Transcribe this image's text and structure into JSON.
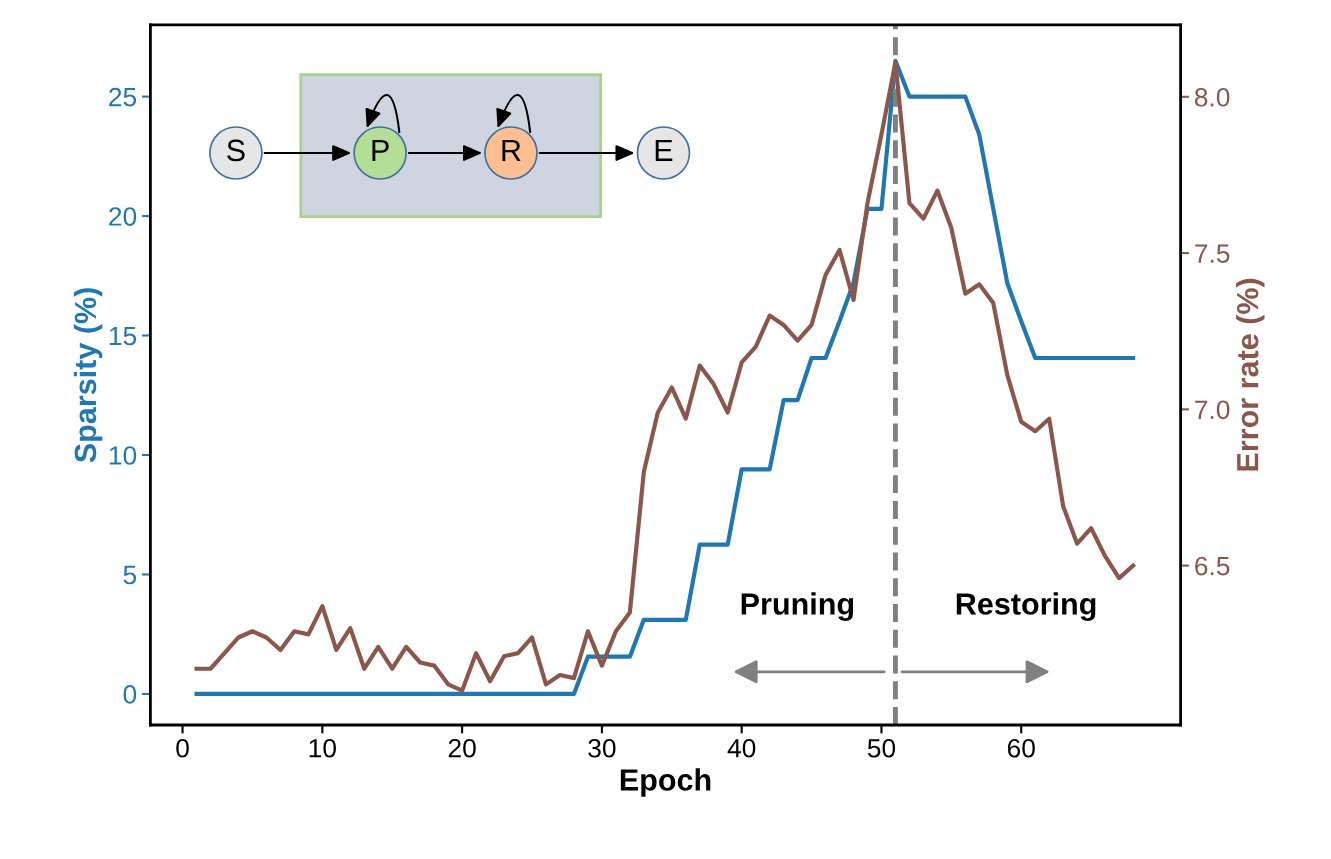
{
  "chart_data": {
    "type": "line",
    "xlabel": "Epoch",
    "ylabel": "Sparsity (%)",
    "y2label": "Error rate (%)",
    "x": [
      1,
      2,
      3,
      4,
      5,
      6,
      7,
      8,
      9,
      10,
      11,
      12,
      13,
      14,
      15,
      16,
      17,
      18,
      19,
      20,
      21,
      22,
      23,
      24,
      25,
      26,
      27,
      28,
      29,
      30,
      31,
      32,
      33,
      34,
      35,
      36,
      37,
      38,
      39,
      40,
      41,
      42,
      43,
      44,
      45,
      46,
      47,
      48,
      49,
      50,
      51,
      52,
      53,
      54,
      55,
      56,
      57,
      58,
      59,
      60,
      61,
      62,
      63,
      64,
      65,
      66,
      67,
      68
    ],
    "series": [
      {
        "color": "#1f77b4",
        "values": [
          0,
          0,
          0,
          0,
          0,
          0,
          0,
          0,
          0,
          0,
          0,
          0,
          0,
          0,
          0,
          0,
          0,
          0,
          0,
          0,
          0,
          0,
          0,
          0,
          0,
          0,
          0,
          0,
          1.56,
          1.56,
          1.56,
          1.56,
          3.1,
          3.1,
          3.1,
          3.1,
          6.25,
          6.25,
          6.25,
          9.4,
          9.4,
          9.4,
          12.3,
          12.3,
          14.06,
          14.06,
          15.6,
          17.2,
          20.3,
          20.3,
          26.5,
          25,
          25,
          25,
          25,
          25,
          23.4,
          20.3,
          17.2,
          15.6,
          14.06,
          14.06,
          14.06,
          14.06,
          14.06,
          14.06,
          14.06,
          14.06
        ]
      },
      {
        "color": "#8c564b",
        "axis": "y2",
        "values": [
          6.17,
          6.17,
          6.22,
          6.27,
          6.29,
          6.27,
          6.23,
          6.29,
          6.28,
          6.37,
          6.23,
          6.3,
          6.17,
          6.24,
          6.17,
          6.24,
          6.19,
          6.18,
          6.12,
          6.1,
          6.22,
          6.13,
          6.21,
          6.22,
          6.27,
          6.12,
          6.15,
          6.14,
          6.29,
          6.18,
          6.29,
          6.35,
          6.8,
          6.99,
          7.07,
          6.97,
          7.14,
          7.08,
          6.99,
          7.15,
          7.2,
          7.3,
          7.27,
          7.22,
          7.27,
          7.43,
          7.51,
          7.35,
          7.66,
          7.88,
          8.11,
          7.66,
          7.61,
          7.7,
          7.58,
          7.37,
          7.4,
          7.34,
          7.11,
          6.96,
          6.93,
          6.97,
          6.69,
          6.57,
          6.62,
          6.53,
          6.46,
          6.5
        ]
      }
    ],
    "xlim": [
      -2.3,
      71.4
    ],
    "xticks": [
      0,
      10,
      20,
      30,
      40,
      50,
      60
    ],
    "ylim": [
      -1.3,
      28.0
    ],
    "yticks": [
      0,
      5,
      10,
      15,
      20,
      25
    ],
    "y2lim": [
      5.99,
      8.23
    ],
    "y2ticks": [
      {
        "value": 6.5,
        "label": "6.5"
      },
      {
        "value": 7,
        "label": "7.0"
      },
      {
        "value": 7.5,
        "label": "7.5"
      },
      {
        "value": 8,
        "label": "8.0"
      }
    ],
    "ref_lines": [
      {
        "axis": "x",
        "value": 51,
        "color": "#808080",
        "line_style": "dashed"
      }
    ],
    "annotations": [
      "Pruning",
      "Restoring",
      "S",
      "P",
      "R",
      "E"
    ],
    "grid": false,
    "legend": false,
    "marker": "none",
    "line_style": "solid"
  }
}
